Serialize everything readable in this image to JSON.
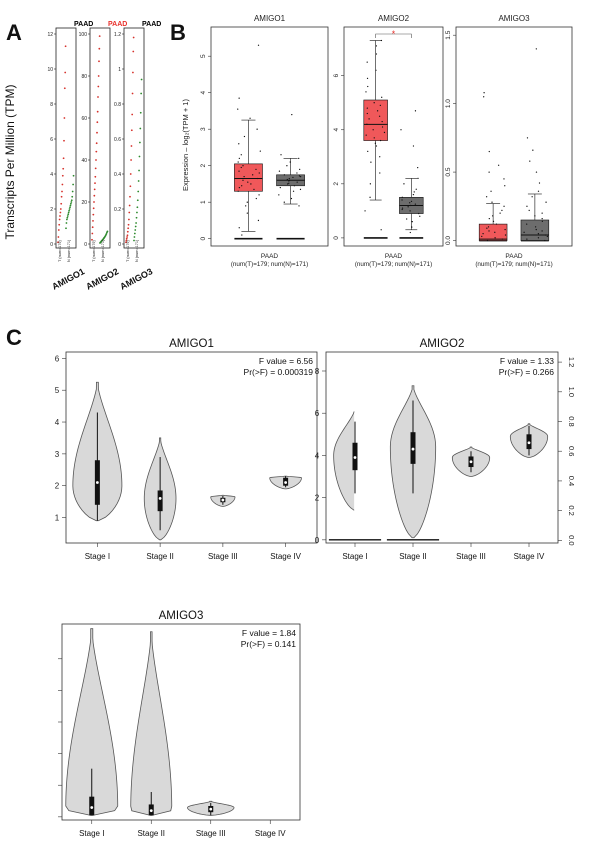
{
  "panel_labels": {
    "a": "A",
    "b": "B",
    "c": "C"
  },
  "chart_data": [
    {
      "panel": "A",
      "type": "scatter",
      "ylabel": "Transcripts Per Million (TPM)",
      "subplots": [
        {
          "gene": "AMIGO1",
          "cancer": "PAAD",
          "cancer_color": "#000000",
          "yticks": [
            "0",
            "2",
            "4",
            "6",
            "8",
            "10",
            "12"
          ],
          "ylim": [
            0,
            12
          ],
          "xticks": [
            "T (num=179)",
            "N (num=171)"
          ],
          "tumor_y": [
            0.1,
            0.4,
            0.8,
            1.1,
            1.4,
            1.6,
            1.8,
            2.0,
            2.3,
            2.7,
            3.0,
            3.4,
            3.9,
            4.3,
            4.9,
            5.9,
            7.2,
            8.9,
            9.8,
            11.3
          ],
          "normal_y": [
            0.9,
            1.2,
            1.4,
            1.5,
            1.6,
            1.7,
            1.8,
            1.9,
            2.0,
            2.1,
            2.2,
            2.3,
            2.4,
            2.5,
            2.7,
            3.0,
            3.4,
            3.9
          ]
        },
        {
          "gene": "AMIGO2",
          "cancer": "PAAD",
          "cancer_color": "#e8312c",
          "yticks": [
            "0",
            "20",
            "40",
            "60",
            "80",
            "100"
          ],
          "ylim": [
            0,
            100
          ],
          "xticks": [
            "T (num=179)",
            "N (num=171)"
          ],
          "tumor_y": [
            2,
            5,
            8,
            11,
            14,
            17,
            20,
            23,
            26,
            29,
            32,
            36,
            40,
            44,
            48,
            53,
            58,
            63,
            70,
            75,
            80,
            87,
            93,
            99
          ],
          "normal_y": [
            0.5,
            0.8,
            1.1,
            1.4,
            1.7,
            2.0,
            2.3,
            2.7,
            3.0,
            3.4,
            3.8,
            4.3,
            4.8,
            5.5,
            6.0
          ]
        },
        {
          "gene": "AMIGO3",
          "cancer": "PAAD",
          "cancer_color": "#000000",
          "yticks": [
            "0",
            "0.2",
            "0.4",
            "0.6",
            "0.8",
            "1",
            "1.2"
          ],
          "ylim": [
            0,
            1.2
          ],
          "xticks": [
            "T (num=179)",
            "N (num=171)"
          ],
          "tumor_y": [
            0.01,
            0.02,
            0.03,
            0.04,
            0.05,
            0.07,
            0.09,
            0.11,
            0.14,
            0.18,
            0.22,
            0.27,
            0.33,
            0.4,
            0.48,
            0.56,
            0.65,
            0.74,
            0.86,
            0.98,
            1.1,
            1.18
          ],
          "normal_y": [
            0.02,
            0.04,
            0.06,
            0.08,
            0.1,
            0.12,
            0.15,
            0.18,
            0.21,
            0.25,
            0.3,
            0.36,
            0.42,
            0.5,
            0.58,
            0.66,
            0.75,
            0.86,
            0.94
          ]
        }
      ]
    },
    {
      "panel": "B",
      "type": "box",
      "ylabel": "Expression – log₂(TPM + 1)",
      "xlabel": "PAAD",
      "xsub": "(num(T)=179; num(N)=171)",
      "tumor_color": "#f0585a",
      "normal_color": "#6d6d6d",
      "subplots": [
        {
          "gene": "AMIGO1",
          "ylim": [
            -0.2,
            5.8
          ],
          "yticks": [
            "0",
            "1",
            "2",
            "3",
            "4",
            "5"
          ],
          "significant": false,
          "boxes": [
            {
              "group": "T",
              "q1": 1.3,
              "median": 1.65,
              "q3": 2.05,
              "whisker_low": 0.2,
              "whisker_high": 3.25,
              "points": [
                0.1,
                0.3,
                0.5,
                0.7,
                0.9,
                1.0,
                1.1,
                1.2,
                1.3,
                1.35,
                1.4,
                1.45,
                1.5,
                1.55,
                1.6,
                1.65,
                1.7,
                1.75,
                1.8,
                1.85,
                1.9,
                1.95,
                2.0,
                2.1,
                2.2,
                2.3,
                2.4,
                2.6,
                2.8,
                3.0,
                3.3,
                3.55,
                3.85,
                5.3
              ]
            },
            {
              "group": "N",
              "q1": 1.45,
              "median": 1.6,
              "q3": 1.75,
              "whisker_low": 0.95,
              "whisker_high": 2.2,
              "points": [
                0.9,
                1.0,
                1.1,
                1.2,
                1.3,
                1.35,
                1.4,
                1.45,
                1.5,
                1.52,
                1.55,
                1.58,
                1.6,
                1.62,
                1.65,
                1.68,
                1.7,
                1.72,
                1.75,
                1.8,
                1.85,
                1.9,
                2.0,
                2.1,
                2.2,
                2.3,
                3.4
              ]
            }
          ]
        },
        {
          "gene": "AMIGO2",
          "ylim": [
            -0.3,
            7.8
          ],
          "yticks": [
            "0",
            "2",
            "4",
            "6"
          ],
          "significant": true,
          "star": "*",
          "boxes": [
            {
              "group": "T",
              "q1": 3.6,
              "median": 4.2,
              "q3": 5.1,
              "whisker_low": 1.4,
              "whisker_high": 7.3,
              "points": [
                0.3,
                1.0,
                1.5,
                2.0,
                2.4,
                2.8,
                3.0,
                3.2,
                3.4,
                3.5,
                3.6,
                3.7,
                3.8,
                3.9,
                4.0,
                4.1,
                4.2,
                4.3,
                4.4,
                4.5,
                4.6,
                4.7,
                4.8,
                4.9,
                5.0,
                5.2,
                5.4,
                5.6,
                5.9,
                6.2,
                6.5,
                6.8,
                7.1,
                7.3
              ]
            },
            {
              "group": "N",
              "q1": 0.9,
              "median": 1.2,
              "q3": 1.5,
              "whisker_low": 0.3,
              "whisker_high": 2.2,
              "points": [
                0.2,
                0.4,
                0.6,
                0.7,
                0.8,
                0.9,
                1.0,
                1.05,
                1.1,
                1.15,
                1.2,
                1.25,
                1.3,
                1.35,
                1.4,
                1.5,
                1.6,
                1.7,
                1.8,
                2.0,
                2.2,
                2.6,
                3.4,
                4.0,
                4.7
              ]
            }
          ]
        },
        {
          "gene": "AMIGO3",
          "ylim": [
            -0.04,
            1.56
          ],
          "yticks": [
            "0.0",
            "0.5",
            "1.0",
            "1.5"
          ],
          "significant": false,
          "boxes": [
            {
              "group": "T",
              "q1": 0.0,
              "median": 0.01,
              "q3": 0.12,
              "whisker_low": 0.0,
              "whisker_high": 0.27,
              "points": [
                0.0,
                0.01,
                0.02,
                0.03,
                0.04,
                0.05,
                0.06,
                0.07,
                0.08,
                0.09,
                0.1,
                0.12,
                0.14,
                0.16,
                0.18,
                0.2,
                0.22,
                0.25,
                0.28,
                0.32,
                0.36,
                0.4,
                0.45,
                0.5,
                0.55,
                0.65,
                1.05,
                1.08
              ]
            },
            {
              "group": "N",
              "q1": 0.0,
              "median": 0.04,
              "q3": 0.15,
              "whisker_low": 0.0,
              "whisker_high": 0.34,
              "points": [
                0.0,
                0.01,
                0.02,
                0.03,
                0.04,
                0.05,
                0.06,
                0.07,
                0.08,
                0.1,
                0.12,
                0.14,
                0.16,
                0.18,
                0.2,
                0.22,
                0.25,
                0.28,
                0.32,
                0.36,
                0.42,
                0.5,
                0.58,
                0.66,
                0.75,
                1.4
              ]
            }
          ]
        }
      ]
    },
    {
      "panel": "C",
      "type": "violin",
      "categories": [
        "Stage I",
        "Stage II",
        "Stage III",
        "Stage IV"
      ],
      "fill": "#d9d9d9",
      "subplots": [
        {
          "gene": "AMIGO1",
          "f_text": "F value = 6.56",
          "p_text": "Pr(>F) = 0.000319",
          "ylim": [
            0.2,
            6.2
          ],
          "yticks": [
            "1",
            "2",
            "3",
            "4",
            "5",
            "6"
          ],
          "axis_side": "left",
          "violins": [
            {
              "stage": "Stage I",
              "lo": 0.9,
              "hi": 5.25,
              "mode": 2.0,
              "width": 0.85,
              "q1": 1.4,
              "median": 2.1,
              "q3": 2.8,
              "wlo": 0.9,
              "whi": 4.3
            },
            {
              "stage": "Stage II",
              "lo": 0.3,
              "hi": 3.5,
              "mode": 1.6,
              "width": 0.55,
              "q1": 1.2,
              "median": 1.6,
              "q3": 1.85,
              "wlo": 0.6,
              "whi": 2.9
            },
            {
              "stage": "Stage III",
              "lo": 1.35,
              "hi": 1.7,
              "mode": 1.65,
              "width": 0.42,
              "q1": 1.48,
              "median": 1.55,
              "q3": 1.62,
              "wlo": 1.4,
              "whi": 1.68
            },
            {
              "stage": "Stage IV",
              "lo": 1.9,
              "hi": 2.3,
              "mode": 2.25,
              "width": 0.55,
              "q1": 2.0,
              "median": 2.1,
              "q3": 2.25,
              "wlo": 1.95,
              "whi": 2.3
            }
          ]
        },
        {
          "gene": "AMIGO2",
          "f_text": "F value = 1.33",
          "p_text": "Pr(>F) = 0.266",
          "ylim": [
            -0.15,
            8.9
          ],
          "yticks": [
            "0",
            "2",
            "4",
            "6",
            "8"
          ],
          "axis_side": "left",
          "right_ylim": [
            -0.018,
            1.268
          ],
          "right_yticks": [
            "0.0",
            "0.2",
            "0.4",
            "0.6",
            "0.8",
            "1.0",
            "1.2"
          ],
          "zero_lines": [
            "Stage I",
            "Stage II"
          ],
          "violins": [
            {
              "stage": "Stage I",
              "lo": 1.4,
              "hi": 6.2,
              "mode": 4.0,
              "width": 0.8,
              "q1": 3.3,
              "median": 3.9,
              "q3": 4.6,
              "wlo": 2.2,
              "whi": 5.6
            },
            {
              "stage": "Stage II",
              "lo": 0.1,
              "hi": 7.3,
              "mode": 4.4,
              "width": 0.85,
              "q1": 3.6,
              "median": 4.3,
              "q3": 5.1,
              "wlo": 2.2,
              "whi": 6.6
            },
            {
              "stage": "Stage III",
              "lo": 3.0,
              "hi": 4.4,
              "mode": 3.9,
              "width": 0.7,
              "q1": 3.45,
              "median": 3.7,
              "q3": 3.95,
              "wlo": 3.2,
              "whi": 4.2
            },
            {
              "stage": "Stage IV",
              "lo": 3.9,
              "hi": 5.5,
              "mode": 4.9,
              "width": 0.7,
              "q1": 4.3,
              "median": 4.6,
              "q3": 5.0,
              "wlo": 4.0,
              "whi": 5.4
            }
          ]
        },
        {
          "gene": "AMIGO3",
          "f_text": "F value = 1.84",
          "p_text": "Pr(>F) = 0.141",
          "ylim": [
            -0.03,
            1.23
          ],
          "yticks": [
            "",
            "",
            "",
            "",
            "",
            ""
          ],
          "axis_side": "left",
          "violins": [
            {
              "stage": "Stage I",
              "lo": 0.0,
              "hi": 1.2,
              "mode": 0.05,
              "width": 0.95,
              "q1": 0.0,
              "median": 0.05,
              "q3": 0.12,
              "wlo": 0.0,
              "whi": 0.3
            },
            {
              "stage": "Stage II",
              "lo": 0.0,
              "hi": 1.18,
              "mode": 0.04,
              "width": 0.75,
              "q1": 0.0,
              "median": 0.03,
              "q3": 0.07,
              "wlo": 0.0,
              "whi": 0.15
            },
            {
              "stage": "Stage III",
              "lo": 0.0,
              "hi": 0.09,
              "mode": 0.05,
              "width": 0.85,
              "q1": 0.02,
              "median": 0.04,
              "q3": 0.06,
              "wlo": 0.0,
              "whi": 0.08
            }
          ]
        }
      ]
    }
  ]
}
